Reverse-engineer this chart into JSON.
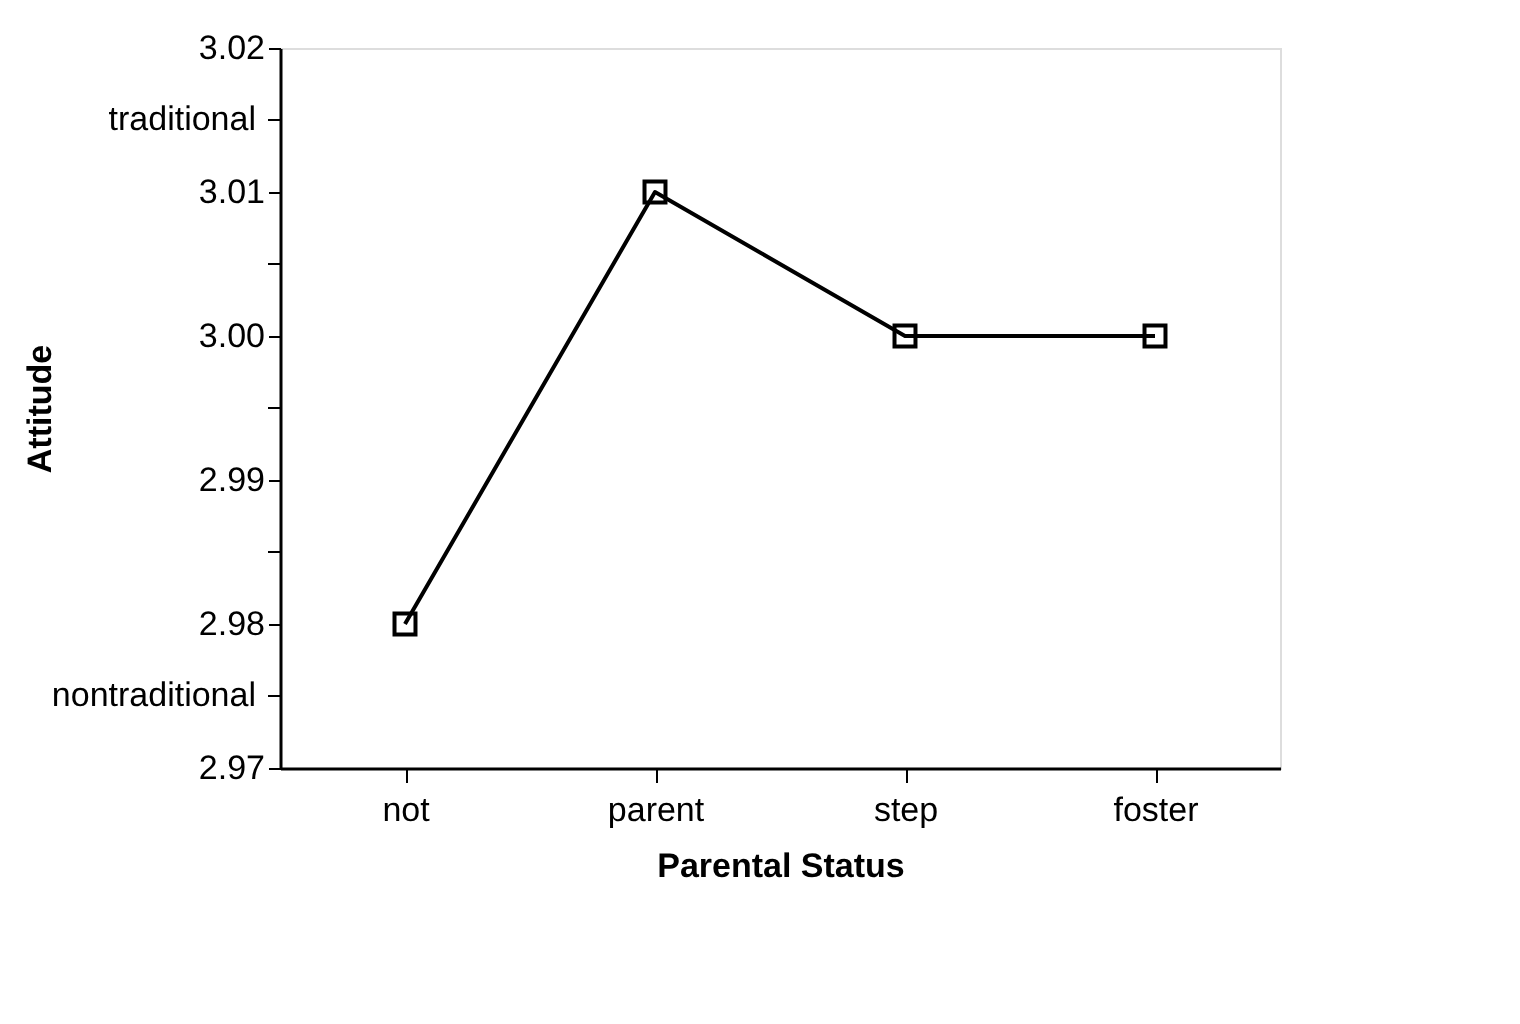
{
  "chart_data": {
    "type": "line",
    "xlabel": "Parental Status",
    "ylabel": "Attitude",
    "categories": [
      "not",
      "parent",
      "step",
      "foster"
    ],
    "series": [
      {
        "color": "#000000",
        "values": [
          2.98,
          3.01,
          3.0,
          3.0
        ]
      }
    ],
    "ylim": [
      2.97,
      3.02
    ],
    "yticks": [
      {
        "value": 2.97,
        "label": "2.97"
      },
      {
        "value": 2.975,
        "label": null
      },
      {
        "value": 2.98,
        "label": "2.98"
      },
      {
        "value": 2.985,
        "label": null
      },
      {
        "value": 2.99,
        "label": "2.99"
      },
      {
        "value": 2.995,
        "label": null
      },
      {
        "value": 3.0,
        "label": "3.00"
      },
      {
        "value": 3.005,
        "label": null
      },
      {
        "value": 3.01,
        "label": "3.01"
      },
      {
        "value": 3.015,
        "label": null
      },
      {
        "value": 3.02,
        "label": "3.02"
      }
    ],
    "annotations": [
      "traditional",
      "nontraditional"
    ],
    "grid": false,
    "legend": false,
    "marker": "square",
    "line_style": "solid"
  }
}
